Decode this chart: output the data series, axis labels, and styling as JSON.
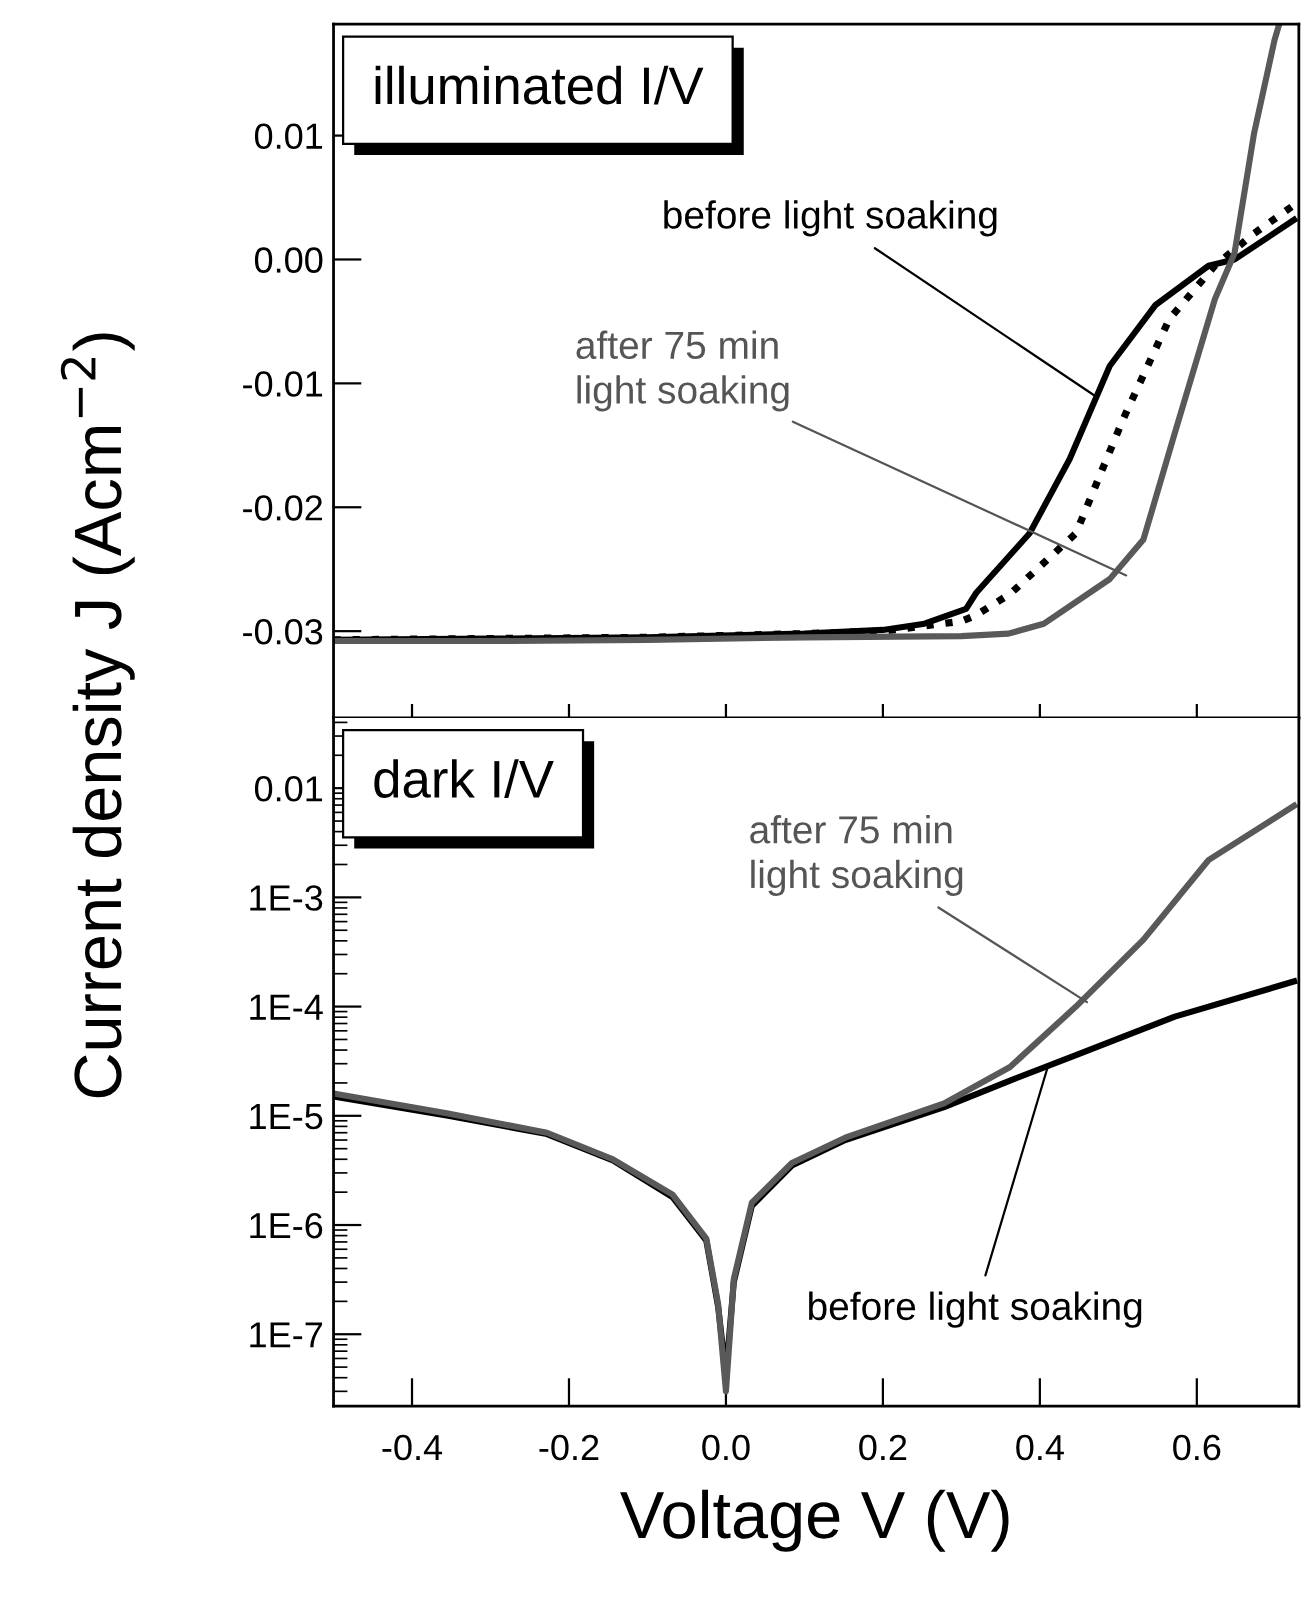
{
  "chart_data": [
    {
      "type": "line",
      "title": "illuminated I/V",
      "ylabel": "Current density J (Acm$^{−2}$)",
      "xlim": [
        -0.5,
        0.73
      ],
      "ylim": [
        -0.037,
        0.019
      ],
      "xticks": [
        {
          "value": -0.4,
          "label": null
        },
        {
          "value": -0.2,
          "label": null
        },
        {
          "value": 0.0,
          "label": null
        },
        {
          "value": 0.2,
          "label": null
        },
        {
          "value": 0.4,
          "label": null
        },
        {
          "value": 0.6,
          "label": null
        }
      ],
      "yticks": [
        {
          "value": -0.03,
          "label": "-0.03"
        },
        {
          "value": -0.02,
          "label": "-0.02"
        },
        {
          "value": -0.01,
          "label": "-0.01"
        },
        {
          "value": 0.0,
          "label": "0.00"
        },
        {
          "value": 0.01,
          "label": "0.01"
        }
      ],
      "tick_labels": "y",
      "grid": false,
      "legend": false,
      "series": [
        {
          "color": "#000000",
          "line_style": "solid",
          "x": [
            -0.5,
            -0.3,
            -0.1,
            0.1,
            0.2,
            0.253,
            0.306,
            0.319,
            0.387,
            0.438,
            0.489,
            0.547,
            0.615,
            0.648,
            0.724
          ],
          "values": [
            -0.0307,
            -0.0306,
            -0.0305,
            -0.0302,
            -0.0299,
            -0.0294,
            -0.0282,
            -0.0269,
            -0.0221,
            -0.0161,
            -0.0086,
            -0.0037,
            -0.0005,
            0.0,
            0.0032
          ]
        },
        {
          "color": "#000000",
          "line_style": "dotted",
          "x": [
            -0.5,
            -0.3,
            -0.1,
            0.1,
            0.2,
            0.3,
            0.319,
            0.362,
            0.446,
            0.506,
            0.565,
            0.623,
            0.673,
            0.724
          ],
          "values": [
            -0.0307,
            -0.0306,
            -0.0305,
            -0.0302,
            -0.03,
            -0.0292,
            -0.0287,
            -0.027,
            -0.0221,
            -0.0129,
            -0.0048,
            -0.0005,
            0.0021,
            0.0044
          ]
        },
        {
          "color": "#595959",
          "line_style": "solid",
          "x": [
            -0.5,
            -0.3,
            -0.1,
            0.1,
            0.3,
            0.36,
            0.405,
            0.489,
            0.532,
            0.572,
            0.623,
            0.648,
            0.673,
            0.699,
            0.705
          ],
          "values": [
            -0.0308,
            -0.0308,
            -0.0307,
            -0.0305,
            -0.0304,
            -0.0302,
            -0.0294,
            -0.0258,
            -0.0226,
            -0.014,
            -0.0032,
            0.0005,
            0.0102,
            0.0177,
            0.019
          ]
        }
      ],
      "annotations": [
        {
          "text": "before light soaking",
          "x": 0.47,
          "y": -0.011
        },
        {
          "text": "after 75 min\nlight soaking",
          "x": 0.51,
          "y": -0.0255
        }
      ]
    },
    {
      "type": "line",
      "title": "dark I/V",
      "xlabel": "Voltage V (V)",
      "log": "y",
      "xlim": [
        -0.5,
        0.73
      ],
      "ylim": [
        2.2e-08,
        0.044
      ],
      "xticks": [
        -0.4,
        -0.2,
        {
          "value": 0.0,
          "label": "0.0"
        },
        0.2,
        0.4,
        0.6
      ],
      "yticks": [
        {
          "value": 1e-07,
          "label": "1E-7"
        },
        {
          "value": 1e-06,
          "label": "1E-6"
        },
        {
          "value": 1e-05,
          "label": "1E-5"
        },
        {
          "value": 0.0001,
          "label": "1E-4"
        },
        {
          "value": 0.001,
          "label": "1E-3"
        },
        0.01
      ],
      "grid": false,
      "legend": false,
      "series": [
        {
          "color": "#000000",
          "line_style": "solid",
          "x": [
            -0.5,
            -0.354,
            -0.228,
            -0.144,
            -0.068,
            -0.025,
            -0.01,
            0.0,
            0.01,
            0.033,
            0.084,
            0.152,
            0.278,
            0.362,
            0.446,
            0.572,
            0.724
          ],
          "values": [
            1.5e-05,
            1e-05,
            6.8e-06,
            3.9e-06,
            1.8e-06,
            7.2e-07,
            1.8e-07,
            4.3e-08,
            3e-07,
            1.5e-06,
            3.5e-06,
            6e-06,
            1.2e-05,
            2.1e-05,
            3.6e-05,
            8.1e-05,
            0.00017
          ]
        },
        {
          "color": "#595959",
          "line_style": "solid",
          "x": [
            -0.5,
            -0.354,
            -0.228,
            -0.144,
            -0.068,
            -0.025,
            -0.01,
            0.0,
            0.01,
            0.033,
            0.084,
            0.152,
            0.278,
            0.362,
            0.446,
            0.532,
            0.615,
            0.724
          ],
          "values": [
            1.6e-05,
            1.05e-05,
            7e-06,
            4e-06,
            1.9e-06,
            7.5e-07,
            1.9e-07,
            3e-08,
            3.2e-07,
            1.6e-06,
            3.7e-06,
            6.3e-06,
            1.3e-05,
            2.8e-05,
            0.0001,
            0.00041,
            0.0022,
            0.0069
          ]
        }
      ],
      "annotations": [
        {
          "text": "after 75 min\nlight soaking",
          "x": 0.46,
          "y": 0.00011
        },
        {
          "text": "before light soaking",
          "x": 0.41,
          "y": 2.8e-05
        }
      ]
    }
  ]
}
